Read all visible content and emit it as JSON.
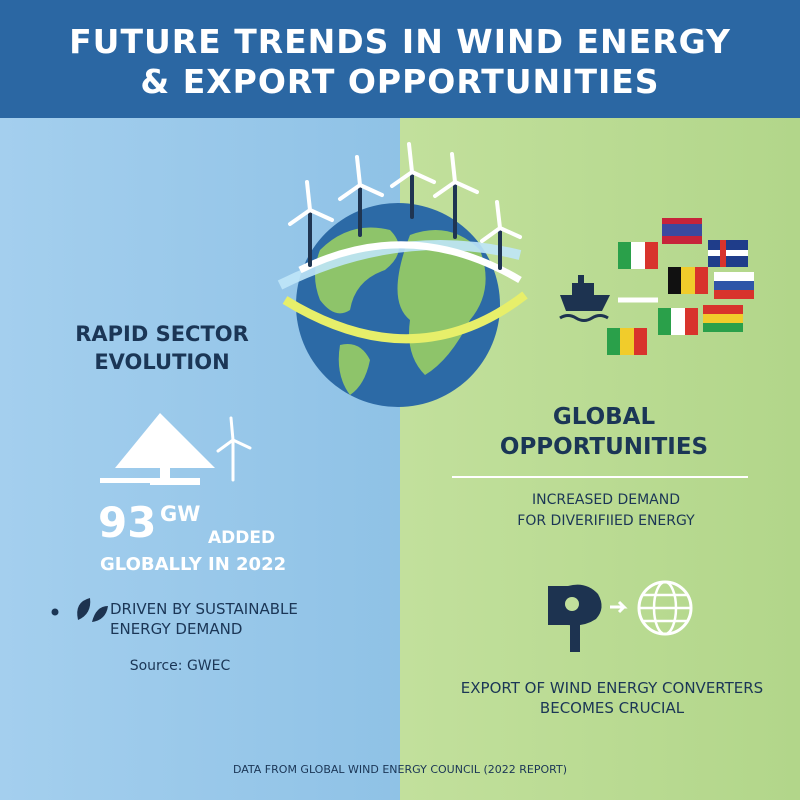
{
  "header": {
    "title_lines": [
      "FUTURE TRENDS IN WIND ENERGY",
      "& EXPORT OPPORTUNITIES"
    ]
  },
  "left": {
    "heading_lines": [
      "RAPID SECTOR",
      "EVOLUTION"
    ],
    "stat": {
      "value": 93,
      "unit": "GW",
      "verb": "ADDED",
      "caption": "GLOBALLY IN 2022"
    },
    "bullet_lines": [
      "DRIVEN BY SUSTAINABLE",
      "ENERGY DEMAND"
    ],
    "source": "Source: GWEC"
  },
  "right": {
    "heading_lines": [
      "GLOBAL",
      "OPPORTUNITIES"
    ],
    "demand_lines": [
      "INCREASED DEMAND",
      "FOR DIVERIFIIED ENERGY"
    ],
    "export_lines": [
      "EXPORT OF WIND ENERGY CONVERTERS",
      "BECOMES CRUCIAL"
    ]
  },
  "footer": "DATA FROM GLOBAL WIND ENERGY COUNCIL (2022 REPORT)"
}
